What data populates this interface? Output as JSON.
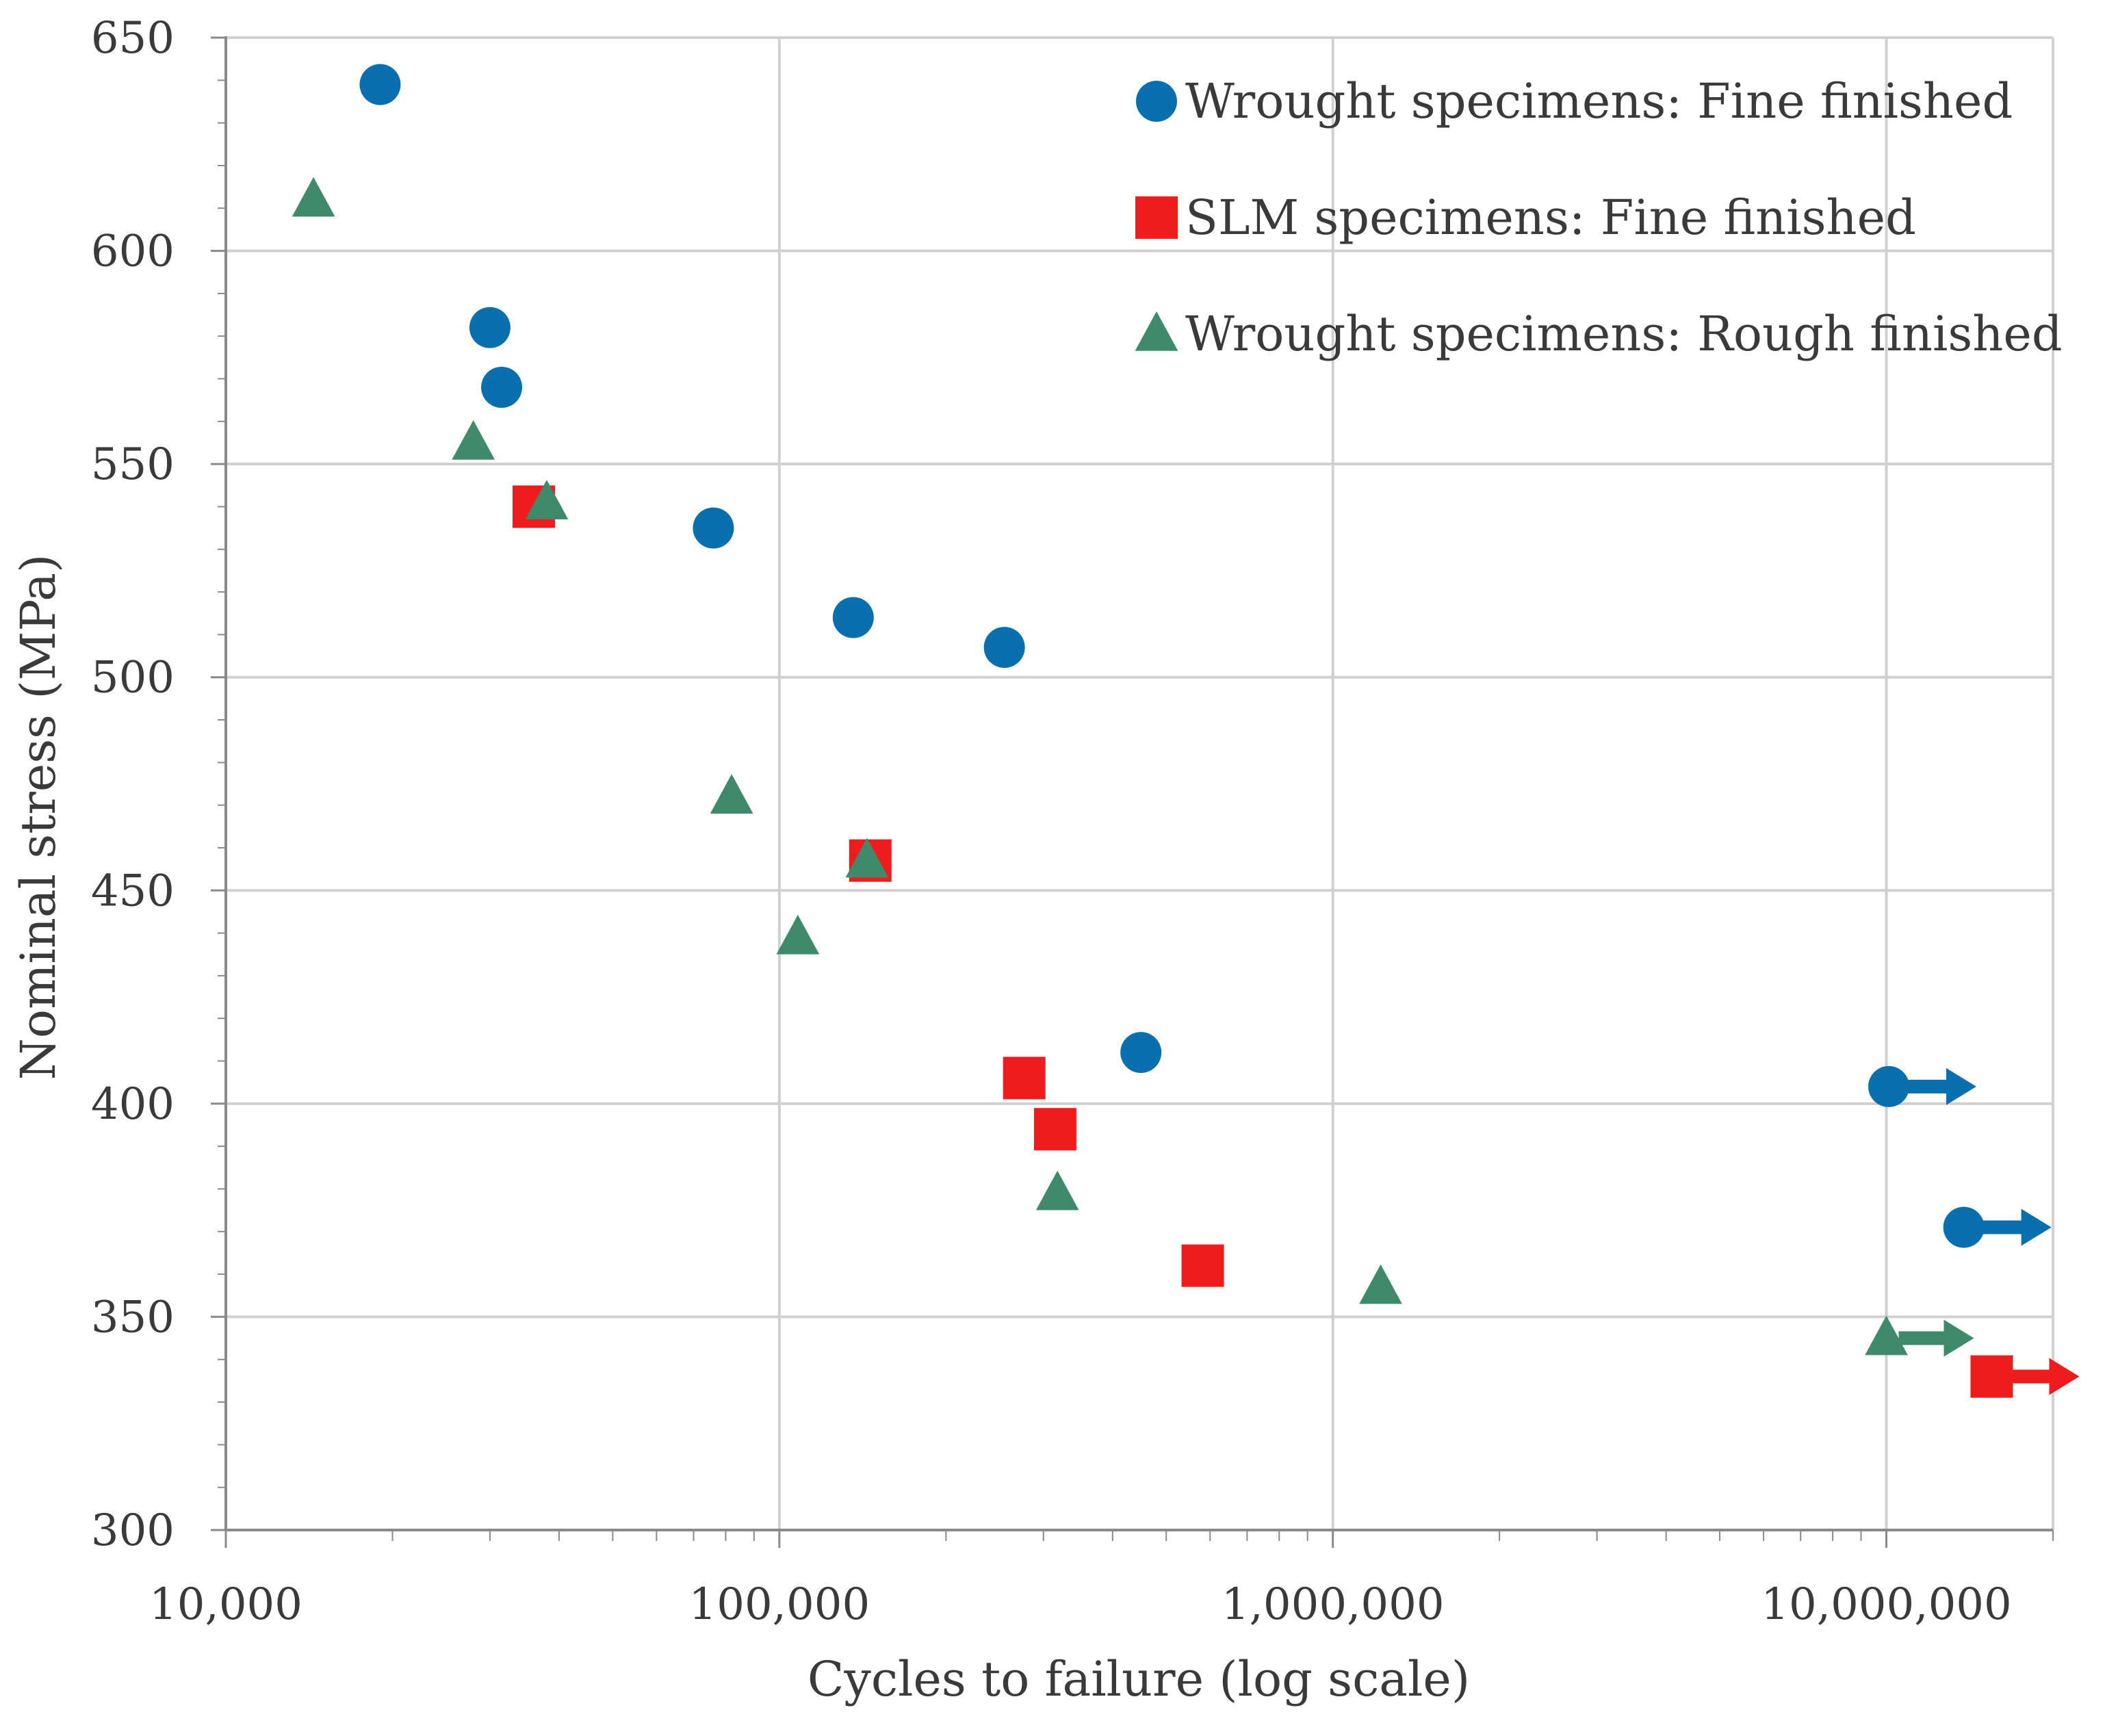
{
  "chart_data": {
    "type": "scatter",
    "title": "",
    "xlabel": "Cycles to failure (log scale)",
    "ylabel": "Nominal stress (MPa)",
    "xscale": "log",
    "xlim": [
      10000,
      20000000
    ],
    "ylim": [
      300,
      650
    ],
    "x_ticks": [
      10000,
      100000,
      1000000,
      10000000
    ],
    "x_tick_labels": [
      "10,000",
      "100,000",
      "1,000,000",
      "10,000,000"
    ],
    "y_ticks": [
      300,
      350,
      400,
      450,
      500,
      550,
      600,
      650
    ],
    "y_tick_labels": [
      "300",
      "350",
      "400",
      "450",
      "500",
      "550",
      "600",
      "650"
    ],
    "grid": true,
    "legend_position": "top-right",
    "colors": {
      "wrought_fine": "#0a6fae",
      "slm_fine": "#ee1c1c",
      "wrought_rough": "#3f8a6b",
      "grid": "#d0d0d0",
      "axis": "#8a8a8a"
    },
    "series": [
      {
        "name": "Wrought specimens: Fine finished",
        "marker": "circle",
        "color_key": "wrought_fine",
        "points": [
          {
            "x": 19000,
            "y": 639
          },
          {
            "x": 30000,
            "y": 582
          },
          {
            "x": 31500,
            "y": 568
          },
          {
            "x": 76000,
            "y": 535
          },
          {
            "x": 136000,
            "y": 514
          },
          {
            "x": 255000,
            "y": 507
          },
          {
            "x": 450000,
            "y": 412
          }
        ],
        "runouts": [
          {
            "x": 10100000,
            "y": 404
          },
          {
            "x": 13800000,
            "y": 371
          }
        ]
      },
      {
        "name": "SLM specimens: Fine finished",
        "marker": "square",
        "color_key": "slm_fine",
        "points": [
          {
            "x": 36000,
            "y": 540
          },
          {
            "x": 146000,
            "y": 457
          },
          {
            "x": 277000,
            "y": 406
          },
          {
            "x": 315000,
            "y": 394
          },
          {
            "x": 582000,
            "y": 362
          }
        ],
        "runouts": [
          {
            "x": 15500000,
            "y": 336
          }
        ]
      },
      {
        "name": "Wrought specimens: Rough finished",
        "marker": "triangle",
        "color_key": "wrought_rough",
        "points": [
          {
            "x": 14400,
            "y": 612
          },
          {
            "x": 28000,
            "y": 555
          },
          {
            "x": 38000,
            "y": 541
          },
          {
            "x": 82000,
            "y": 472
          },
          {
            "x": 108000,
            "y": 439
          },
          {
            "x": 144000,
            "y": 457
          },
          {
            "x": 318000,
            "y": 379
          },
          {
            "x": 1220000,
            "y": 357
          }
        ],
        "runouts": [
          {
            "x": 10000000,
            "y": 345
          }
        ]
      }
    ]
  }
}
